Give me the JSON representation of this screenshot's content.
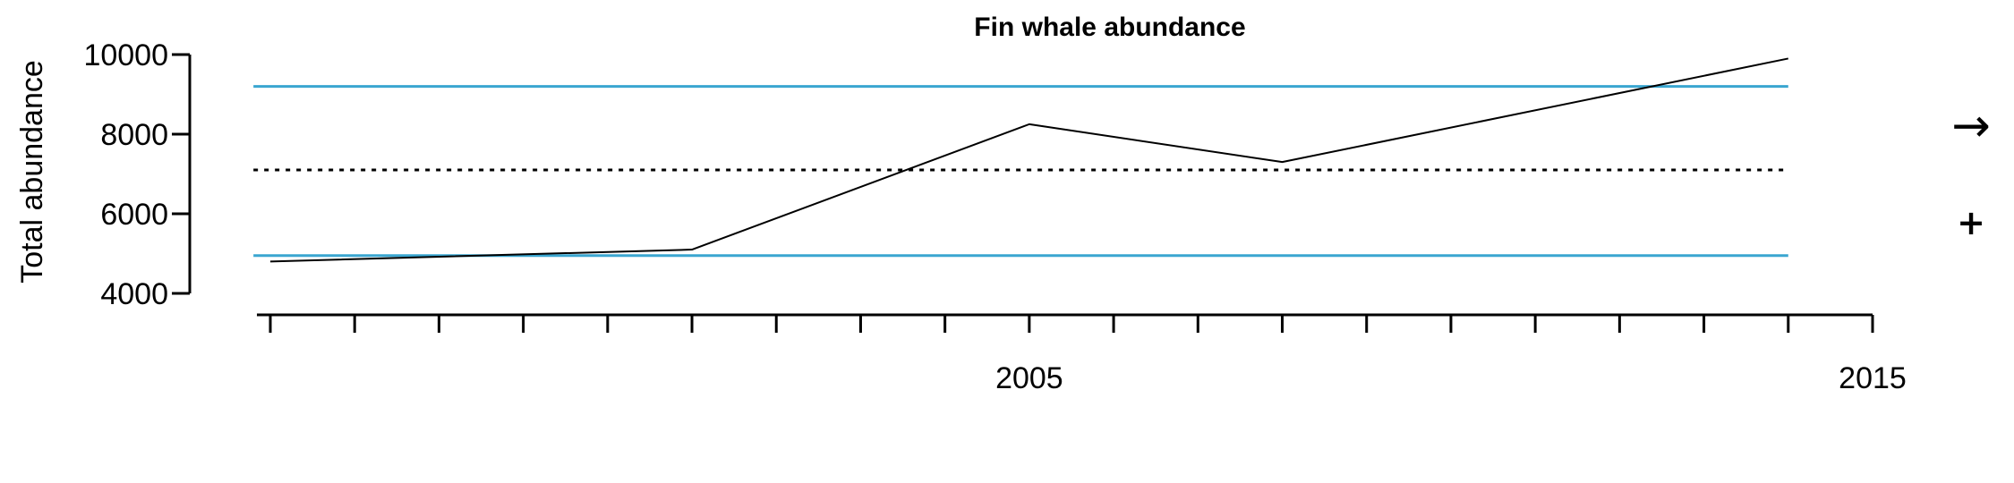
{
  "chart_data": {
    "type": "line",
    "title": "Fin whale abundance",
    "xlabel": "",
    "ylabel": "Total abundance",
    "xlim": [
      1996,
      2015
    ],
    "ylim": [
      4000,
      10000
    ],
    "x_ticks_major": [
      2005,
      2015
    ],
    "x_ticks_minor": [
      1996,
      1997,
      1998,
      1999,
      2000,
      2001,
      2002,
      2003,
      2004,
      2005,
      2006,
      2007,
      2008,
      2009,
      2010,
      2011,
      2012,
      2013,
      2014,
      2015
    ],
    "y_ticks": [
      4000,
      6000,
      8000,
      10000
    ],
    "series": [
      {
        "x": [
          1996,
          2001,
          2005,
          2008,
          2014
        ],
        "values": [
          4800,
          5100,
          8250,
          7300,
          9900
        ],
        "color": "#000000"
      }
    ],
    "reference_lines": {
      "mean": 7100,
      "lower": 4950,
      "upper": 9200,
      "x_range": [
        1995.8,
        2014
      ],
      "mean_color": "#000000",
      "band_color": "#3aa6d0"
    },
    "indicators": {
      "trend_icon": "right-arrow-icon",
      "trend_glyph": "→",
      "status_icon": "plus-icon",
      "status_glyph": "+"
    }
  }
}
